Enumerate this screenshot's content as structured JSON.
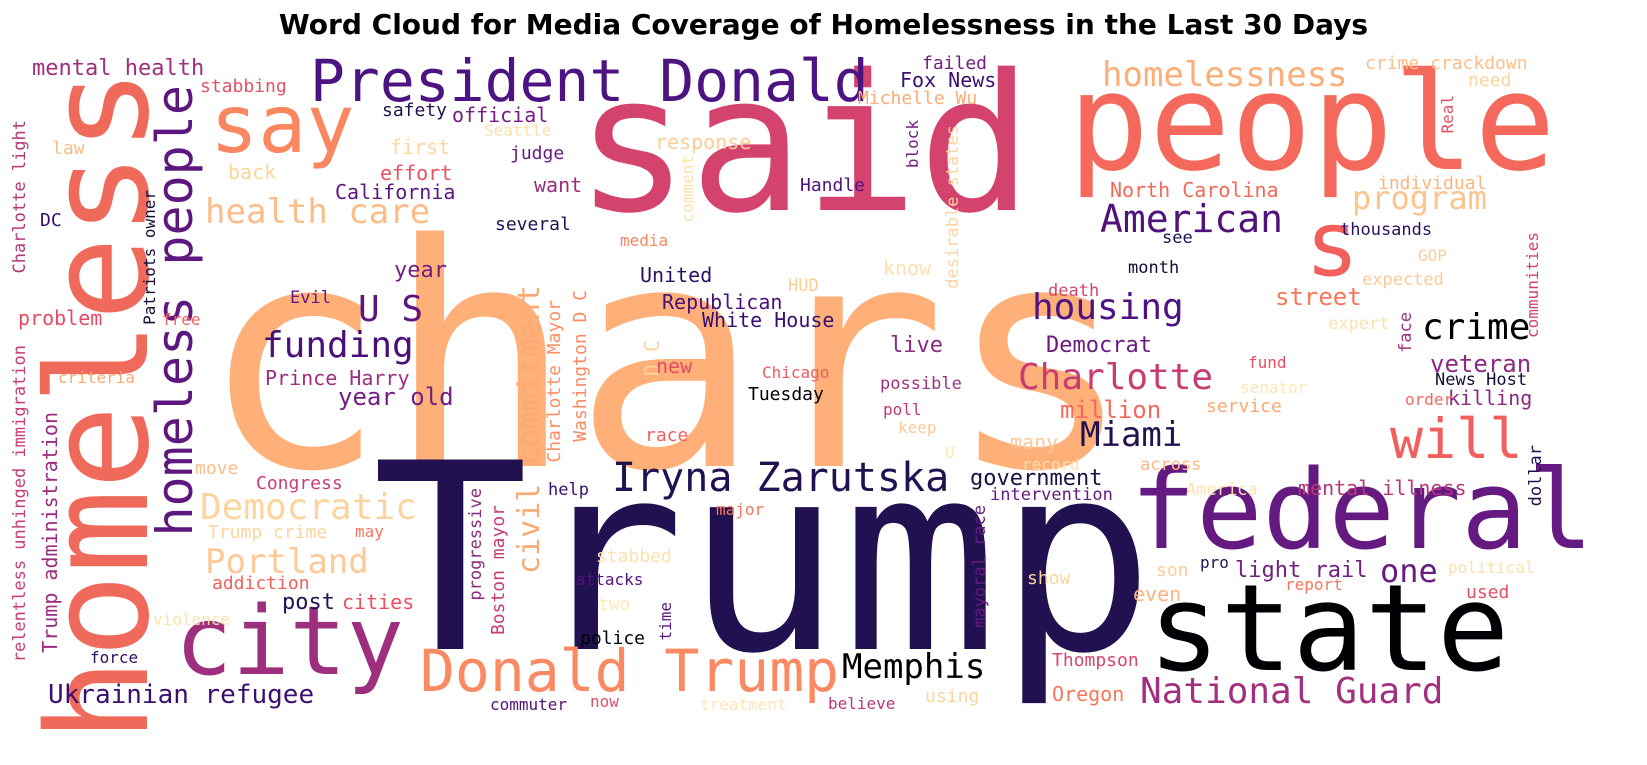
{
  "title": "Word Cloud for Media Coverage of Homelessness in the Last 30 Days",
  "palette": "magma",
  "words": [
    {
      "text": "chars",
      "color": "#feb078"
    },
    {
      "text": "Trump",
      "color": "#221150"
    },
    {
      "text": "said",
      "color": "#d3436e"
    },
    {
      "text": "people",
      "color": "#f4695c"
    },
    {
      "text": "homeless",
      "color": "#f06a5b"
    },
    {
      "text": "state",
      "color": "#000004"
    },
    {
      "text": "federal",
      "color": "#641a80"
    },
    {
      "text": "s",
      "color": "#f1605d"
    },
    {
      "text": "city",
      "color": "#9e2f7f"
    },
    {
      "text": "say",
      "color": "#fb8761"
    },
    {
      "text": "President Donald",
      "color": "#4c1382"
    },
    {
      "text": "homeless people",
      "color": "#5e177f"
    },
    {
      "text": "Donald Trump",
      "color": "#fb8a62"
    },
    {
      "text": "Iryna Zarutska",
      "color": "#221150"
    },
    {
      "text": "will",
      "color": "#f1605d"
    },
    {
      "text": "homelessness",
      "color": "#fcae78"
    },
    {
      "text": "health care",
      "color": "#fdbd8a"
    },
    {
      "text": "American",
      "color": "#51127c"
    },
    {
      "text": "civil commitment",
      "color": "#fcaa74"
    },
    {
      "text": "Democratic",
      "color": "#fdd49e"
    },
    {
      "text": "Portland",
      "color": "#fdc997"
    },
    {
      "text": "housing",
      "color": "#4c1382"
    },
    {
      "text": "funding",
      "color": "#4a1079"
    },
    {
      "text": "Charlotte",
      "color": "#c73d73"
    },
    {
      "text": "Miami",
      "color": "#221150"
    },
    {
      "text": "crime",
      "color": "#000004"
    },
    {
      "text": "National Guard",
      "color": "#a3307e"
    },
    {
      "text": "Memphis",
      "color": "#000004"
    },
    {
      "text": "program",
      "color": "#fcc48e"
    },
    {
      "text": "U S",
      "color": "#5c167f"
    },
    {
      "text": "Ukrainian refugee",
      "color": "#3b0f70"
    },
    {
      "text": "one",
      "color": "#6a1c81"
    },
    {
      "text": "mental health",
      "color": "#9e2f7f"
    },
    {
      "text": "year old",
      "color": "#721f81"
    },
    {
      "text": "million",
      "color": "#f4695c"
    },
    {
      "text": "street",
      "color": "#f8765c"
    },
    {
      "text": "veteran",
      "color": "#8c2981"
    },
    {
      "text": "government",
      "color": "#1c1044"
    },
    {
      "text": "Democrat",
      "color": "#6a1c81"
    },
    {
      "text": "post",
      "color": "#231151"
    },
    {
      "text": "light rail",
      "color": "#721f81"
    },
    {
      "text": "mental illness",
      "color": "#b73779"
    },
    {
      "text": "killing",
      "color": "#8c2981"
    },
    {
      "text": "Washington D C",
      "color": "#fc8961"
    },
    {
      "text": "Charlotte Mayor",
      "color": "#fc9065"
    },
    {
      "text": "D C",
      "color": "#fed39a"
    },
    {
      "text": "year",
      "color": "#721f81"
    },
    {
      "text": "want",
      "color": "#9a2d80"
    },
    {
      "text": "live",
      "color": "#8c2981"
    },
    {
      "text": "Trump administration",
      "color": "#9a2d80"
    },
    {
      "text": "relentless unhinged immigration",
      "color": "#c83e73"
    },
    {
      "text": "Charlotte light",
      "color": "#b53679"
    },
    {
      "text": "Patriots owner",
      "color": "#140e36"
    },
    {
      "text": "Oregon",
      "color": "#f8765c"
    },
    {
      "text": "cities",
      "color": "#e8525f"
    },
    {
      "text": "Boston mayor",
      "color": "#c73d73"
    },
    {
      "text": "progressive",
      "color": "#8c2981"
    },
    {
      "text": "mayoral race",
      "color": "#641a80"
    },
    {
      "text": "Thompson",
      "color": "#d6456c"
    },
    {
      "text": "Republican",
      "color": "#4a1079"
    },
    {
      "text": "United",
      "color": "#2d1160"
    },
    {
      "text": "White House",
      "color": "#3b0f70"
    },
    {
      "text": "Prince Harry",
      "color": "#9e2f7f"
    },
    {
      "text": "Fox News",
      "color": "#3b0f70"
    },
    {
      "text": "Michelle Wu",
      "color": "#fcac76"
    },
    {
      "text": "official",
      "color": "#721f81"
    },
    {
      "text": "failed",
      "color": "#721f81"
    },
    {
      "text": "safety",
      "color": "#231151"
    },
    {
      "text": "stabbing",
      "color": "#e55064"
    },
    {
      "text": "law",
      "color": "#fcbb83"
    },
    {
      "text": "Seattle",
      "color": "#fee1ad"
    },
    {
      "text": "judge",
      "color": "#641a80"
    },
    {
      "text": "response",
      "color": "#fdcd96"
    },
    {
      "text": "first",
      "color": "#fdd7a2"
    },
    {
      "text": "effort",
      "color": "#e75263"
    },
    {
      "text": "back",
      "color": "#fdd49e"
    },
    {
      "text": "California",
      "color": "#5c167f"
    },
    {
      "text": "Handle",
      "color": "#51127c"
    },
    {
      "text": "block",
      "color": "#721f81"
    },
    {
      "text": "desirable states",
      "color": "#fdd49e"
    },
    {
      "text": "comment",
      "color": "#fde1ad"
    },
    {
      "text": "DC",
      "color": "#3b0f70"
    },
    {
      "text": "several",
      "color": "#231151"
    },
    {
      "text": "media",
      "color": "#fb8761"
    },
    {
      "text": "North Carolina",
      "color": "#f06a5b"
    },
    {
      "text": "individual",
      "color": "#fdb47d"
    },
    {
      "text": "see",
      "color": "#231151"
    },
    {
      "text": "thousands",
      "color": "#2d1160"
    },
    {
      "text": "crime crackdown",
      "color": "#fdbe8b"
    },
    {
      "text": "need",
      "color": "#fdd49e"
    },
    {
      "text": "Real",
      "color": "#e55064"
    },
    {
      "text": "month",
      "color": "#140e36"
    },
    {
      "text": "know",
      "color": "#fde1ad"
    },
    {
      "text": "death",
      "color": "#d6456c"
    },
    {
      "text": "HUD",
      "color": "#fdcd96"
    },
    {
      "text": "GOP",
      "color": "#fdcd96"
    },
    {
      "text": "expected",
      "color": "#fdc997"
    },
    {
      "text": "communities",
      "color": "#d3436e"
    },
    {
      "text": "expert",
      "color": "#fde1ad"
    },
    {
      "text": "face",
      "color": "#9e2f7f"
    },
    {
      "text": "fund",
      "color": "#e55064"
    },
    {
      "text": "senator",
      "color": "#fee6b4"
    },
    {
      "text": "service",
      "color": "#fca771"
    },
    {
      "text": "order",
      "color": "#f4695c"
    },
    {
      "text": "News Host",
      "color": "#140e36"
    },
    {
      "text": "Evil",
      "color": "#641a80"
    },
    {
      "text": "free",
      "color": "#f1605d"
    },
    {
      "text": "problem",
      "color": "#e24d65"
    },
    {
      "text": "criteria",
      "color": "#fca771"
    },
    {
      "text": "new",
      "color": "#e24d65"
    },
    {
      "text": "Chicago",
      "color": "#ed5a5f"
    },
    {
      "text": "possible",
      "color": "#9e2f7f"
    },
    {
      "text": "poll",
      "color": "#c03a76"
    },
    {
      "text": "keep",
      "color": "#fdc997"
    },
    {
      "text": "Tuesday",
      "color": "#000004"
    },
    {
      "text": "race",
      "color": "#f1605d"
    },
    {
      "text": "many",
      "color": "#fdc997"
    },
    {
      "text": "U",
      "color": "#fde9b5"
    },
    {
      "text": "record",
      "color": "#fee1ad"
    },
    {
      "text": "across",
      "color": "#fcbb83"
    },
    {
      "text": "intervention",
      "color": "#641a80"
    },
    {
      "text": "America",
      "color": "#fee1ad"
    },
    {
      "text": "dollar",
      "color": "#231151"
    },
    {
      "text": "Congress",
      "color": "#c83e73"
    },
    {
      "text": "move",
      "color": "#fdbd8a"
    },
    {
      "text": "Trump crime",
      "color": "#fdd49e"
    },
    {
      "text": "may",
      "color": "#f8765c"
    },
    {
      "text": "help",
      "color": "#3b0f70"
    },
    {
      "text": "major",
      "color": "#f8765c"
    },
    {
      "text": "addiction",
      "color": "#f1605d"
    },
    {
      "text": "stabbed",
      "color": "#fde1ad"
    },
    {
      "text": "attacks",
      "color": "#51127c"
    },
    {
      "text": "two",
      "color": "#fde9b5"
    },
    {
      "text": "time",
      "color": "#5c167f"
    },
    {
      "text": "show",
      "color": "#fdd49e"
    },
    {
      "text": "son",
      "color": "#fdcd96"
    },
    {
      "text": "pro",
      "color": "#231151"
    },
    {
      "text": "even",
      "color": "#fdb47d"
    },
    {
      "text": "political",
      "color": "#fde1ad"
    },
    {
      "text": "report",
      "color": "#f8765c"
    },
    {
      "text": "used",
      "color": "#e55064"
    },
    {
      "text": "violence",
      "color": "#fee1ad"
    },
    {
      "text": "force",
      "color": "#2d1160"
    },
    {
      "text": "police",
      "color": "#000004"
    },
    {
      "text": "using",
      "color": "#fdd49e"
    },
    {
      "text": "believe",
      "color": "#b73779"
    },
    {
      "text": "commuter",
      "color": "#51127c"
    },
    {
      "text": "now",
      "color": "#e55064"
    },
    {
      "text": "treatment",
      "color": "#fee6b4"
    }
  ]
}
